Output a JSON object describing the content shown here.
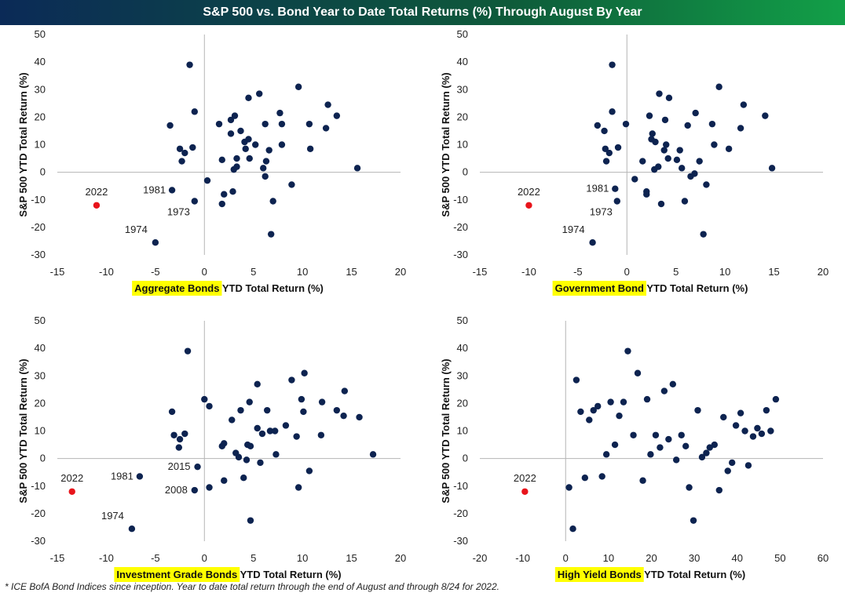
{
  "title": "S&P 500 vs. Bond Year to Date Total Returns (%) Through August By Year",
  "footnote": "* ICE BofA Bond Indices since inception. Year to date total return through the end of August and through 8/24 for 2022.",
  "colors": {
    "point": "#0d2350",
    "highlight": "#e8141b",
    "label_highlight": "#ffff00"
  },
  "chart_data": [
    {
      "type": "scatter",
      "xlabel_highlight": "Aggregate Bonds",
      "xlabel_rest": " YTD Total Return (%)",
      "ylabel": "S&P 500 YTD Total Return (%)",
      "xlim": [
        -15,
        20
      ],
      "ylim": [
        -30,
        50
      ],
      "xticks": [
        -15,
        -10,
        -5,
        0,
        5,
        10,
        15,
        20
      ],
      "yticks": [
        -30,
        -20,
        -10,
        0,
        10,
        20,
        30,
        40,
        50
      ],
      "points": [
        [
          -1.5,
          39
        ],
        [
          -1,
          22
        ],
        [
          -3.5,
          17
        ],
        [
          -2.5,
          8.5
        ],
        [
          -2,
          7
        ],
        [
          -1.2,
          9
        ],
        [
          -2.3,
          4
        ],
        [
          -3.3,
          -6.5
        ],
        [
          -1,
          -10.5
        ],
        [
          -5,
          -25.5
        ],
        [
          0.3,
          -3
        ],
        [
          1.5,
          17.5
        ],
        [
          1.8,
          4.5
        ],
        [
          2,
          -8
        ],
        [
          1.8,
          -11.5
        ],
        [
          2.7,
          19
        ],
        [
          2.7,
          14
        ],
        [
          3.1,
          20.5
        ],
        [
          3,
          1
        ],
        [
          3.3,
          2
        ],
        [
          3.3,
          5
        ],
        [
          2.9,
          -7
        ],
        [
          3.7,
          15
        ],
        [
          4.1,
          11
        ],
        [
          4.2,
          8.5
        ],
        [
          4.5,
          12
        ],
        [
          4.5,
          27
        ],
        [
          4.6,
          5
        ],
        [
          5.2,
          10
        ],
        [
          5.6,
          28.5
        ],
        [
          6,
          1.5
        ],
        [
          6.2,
          17.5
        ],
        [
          6.2,
          -1.5
        ],
        [
          6.3,
          4
        ],
        [
          6.6,
          8
        ],
        [
          6.8,
          -22.5
        ],
        [
          7,
          -10.5
        ],
        [
          7.7,
          21.5
        ],
        [
          7.9,
          17.5
        ],
        [
          7.9,
          10
        ],
        [
          8.9,
          -4.5
        ],
        [
          9.6,
          31
        ],
        [
          10.7,
          17.5
        ],
        [
          10.8,
          8.5
        ],
        [
          12.4,
          16
        ],
        [
          12.6,
          24.5
        ],
        [
          13.5,
          20.5
        ],
        [
          15.6,
          1.5
        ]
      ],
      "highlight": {
        "x": -11,
        "y": -12,
        "label": "2022"
      },
      "annotations": [
        {
          "label": "1981",
          "x": -3.3,
          "y": -6.5
        },
        {
          "label": "1973",
          "x": -1,
          "y": -10.5
        },
        {
          "label": "1974",
          "x": -5,
          "y": -25.5
        }
      ]
    },
    {
      "type": "scatter",
      "xlabel_highlight": "Government Bond",
      "xlabel_rest": " YTD Total Return (%)",
      "ylabel": "S&P 500 YTD Total Return (%)",
      "xlim": [
        -15,
        20
      ],
      "ylim": [
        -30,
        50
      ],
      "xticks": [
        -15,
        -10,
        -5,
        0,
        5,
        10,
        15,
        20
      ],
      "yticks": [
        -30,
        -20,
        -10,
        0,
        10,
        20,
        30,
        40,
        50
      ],
      "points": [
        [
          -1.5,
          39
        ],
        [
          -1.5,
          22
        ],
        [
          -3,
          17
        ],
        [
          -2.3,
          15
        ],
        [
          -2.2,
          8.5
        ],
        [
          -1.8,
          7
        ],
        [
          -0.9,
          9
        ],
        [
          -2.1,
          4
        ],
        [
          -1.2,
          -6
        ],
        [
          -1,
          -10.5
        ],
        [
          -3.5,
          -25.5
        ],
        [
          -0.1,
          17.5
        ],
        [
          0.8,
          -2.5
        ],
        [
          1.6,
          4
        ],
        [
          2,
          -7
        ],
        [
          2,
          -8
        ],
        [
          2.3,
          20.5
        ],
        [
          2.5,
          12
        ],
        [
          2.6,
          14
        ],
        [
          2.9,
          11
        ],
        [
          2.8,
          1
        ],
        [
          3.2,
          2
        ],
        [
          3.3,
          28.5
        ],
        [
          3.5,
          -11.5
        ],
        [
          3.8,
          8
        ],
        [
          3.9,
          19
        ],
        [
          4,
          10
        ],
        [
          4.3,
          27
        ],
        [
          4.2,
          5
        ],
        [
          5.1,
          4.5
        ],
        [
          5.4,
          8
        ],
        [
          5.6,
          1.5
        ],
        [
          5.9,
          -10.5
        ],
        [
          6.2,
          17
        ],
        [
          6.5,
          -1.5
        ],
        [
          6.9,
          -0.5
        ],
        [
          7,
          21.5
        ],
        [
          7.4,
          4
        ],
        [
          7.8,
          -22.5
        ],
        [
          8.1,
          -4.5
        ],
        [
          8.7,
          17.5
        ],
        [
          8.9,
          10
        ],
        [
          9.4,
          31
        ],
        [
          10.4,
          8.5
        ],
        [
          11.6,
          16
        ],
        [
          11.9,
          24.5
        ],
        [
          14.1,
          20.5
        ],
        [
          14.8,
          1.5
        ]
      ],
      "highlight": {
        "x": -10,
        "y": -12,
        "label": "2022"
      },
      "annotations": [
        {
          "label": "1981",
          "x": -1.2,
          "y": -6
        },
        {
          "label": "1973",
          "x": -1,
          "y": -10.5
        },
        {
          "label": "1974",
          "x": -3.5,
          "y": -25.5
        }
      ]
    },
    {
      "type": "scatter",
      "xlabel_highlight": "Investment Grade Bonds",
      "xlabel_rest": " YTD Total Return (%)",
      "ylabel": "S&P 500 YTD Total Return (%)",
      "xlim": [
        -15,
        20
      ],
      "ylim": [
        -30,
        50
      ],
      "xticks": [
        -15,
        -10,
        -5,
        0,
        5,
        10,
        15,
        20
      ],
      "yticks": [
        -30,
        -20,
        -10,
        0,
        10,
        20,
        30,
        40,
        50
      ],
      "points": [
        [
          -1.7,
          39
        ],
        [
          0,
          21.5
        ],
        [
          0.5,
          19
        ],
        [
          -3.3,
          17
        ],
        [
          -3.1,
          8.5
        ],
        [
          -2.5,
          7
        ],
        [
          -2,
          9
        ],
        [
          -2.6,
          4
        ],
        [
          -6.6,
          -6.5
        ],
        [
          -0.7,
          -3
        ],
        [
          -1,
          -11.5
        ],
        [
          -7.4,
          -25.5
        ],
        [
          0.5,
          -10.5
        ],
        [
          1.8,
          4.5
        ],
        [
          2,
          5.5
        ],
        [
          2,
          -8
        ],
        [
          2.8,
          14
        ],
        [
          3.2,
          2
        ],
        [
          3.5,
          0.5
        ],
        [
          3.7,
          17.5
        ],
        [
          4,
          -7
        ],
        [
          4.3,
          -0.5
        ],
        [
          4.4,
          5
        ],
        [
          4.6,
          20.5
        ],
        [
          4.7,
          4.5
        ],
        [
          4.7,
          -22.5
        ],
        [
          5.4,
          11
        ],
        [
          5.4,
          27
        ],
        [
          5.7,
          -1.5
        ],
        [
          5.9,
          9
        ],
        [
          6.4,
          17.5
        ],
        [
          6.7,
          10
        ],
        [
          7.2,
          10
        ],
        [
          7.3,
          1.5
        ],
        [
          8.3,
          12
        ],
        [
          8.9,
          28.5
        ],
        [
          9.4,
          8
        ],
        [
          9.6,
          -10.5
        ],
        [
          9.9,
          21.5
        ],
        [
          10.1,
          17
        ],
        [
          10.2,
          31
        ],
        [
          10.7,
          -4.5
        ],
        [
          11.9,
          8.5
        ],
        [
          12,
          20.5
        ],
        [
          13.5,
          17.5
        ],
        [
          14.2,
          15.5
        ],
        [
          14.3,
          24.5
        ],
        [
          15.8,
          15
        ],
        [
          17.2,
          1.5
        ]
      ],
      "highlight": {
        "x": -13.5,
        "y": -12,
        "label": "2022"
      },
      "annotations": [
        {
          "label": "1981",
          "x": -6.6,
          "y": -6.5
        },
        {
          "label": "2015",
          "x": -0.7,
          "y": -3
        },
        {
          "label": "2008",
          "x": -1,
          "y": -11.5
        },
        {
          "label": "1974",
          "x": -7.4,
          "y": -25.5
        }
      ]
    },
    {
      "type": "scatter",
      "xlabel_highlight": "High Yield Bonds",
      "xlabel_rest": " YTD Total Return (%)",
      "ylabel": "S&P 500 YTD Total Return (%)",
      "xlim": [
        -20,
        60
      ],
      "ylim": [
        -30,
        50
      ],
      "xticks": [
        -20,
        -10,
        0,
        10,
        20,
        30,
        40,
        50,
        60
      ],
      "yticks": [
        -30,
        -20,
        -10,
        0,
        10,
        20,
        30,
        40,
        50
      ],
      "points": [
        [
          0.8,
          -10.5
        ],
        [
          1.7,
          -25.5
        ],
        [
          2.5,
          28.5
        ],
        [
          3.5,
          17
        ],
        [
          4.5,
          -7
        ],
        [
          5.5,
          14
        ],
        [
          6.5,
          17.5
        ],
        [
          7.5,
          19
        ],
        [
          8.5,
          -6.5
        ],
        [
          9.5,
          1.5
        ],
        [
          10.5,
          20.5
        ],
        [
          11.5,
          5
        ],
        [
          12.5,
          15.5
        ],
        [
          13.5,
          20.5
        ],
        [
          14.5,
          39
        ],
        [
          15.8,
          8.5
        ],
        [
          16.8,
          31
        ],
        [
          18,
          -8
        ],
        [
          19,
          21.5
        ],
        [
          19.8,
          1.5
        ],
        [
          21,
          8.5
        ],
        [
          22,
          4
        ],
        [
          23,
          24.5
        ],
        [
          24,
          7
        ],
        [
          25,
          27
        ],
        [
          25.8,
          -0.5
        ],
        [
          27,
          8.5
        ],
        [
          28,
          4.5
        ],
        [
          28.8,
          -10.5
        ],
        [
          29.8,
          -22.5
        ],
        [
          30.8,
          17.5
        ],
        [
          31.8,
          0.5
        ],
        [
          32.8,
          2
        ],
        [
          33.6,
          4
        ],
        [
          34.7,
          5
        ],
        [
          35.8,
          -11.5
        ],
        [
          36.8,
          15
        ],
        [
          37.8,
          -4.5
        ],
        [
          38.8,
          -1.5
        ],
        [
          39.7,
          12
        ],
        [
          40.8,
          16.5
        ],
        [
          41.8,
          10
        ],
        [
          42.6,
          -2.5
        ],
        [
          43.7,
          8
        ],
        [
          44.7,
          11
        ],
        [
          45.7,
          9
        ],
        [
          46.8,
          17.5
        ],
        [
          47.8,
          10
        ],
        [
          49,
          21.5
        ]
      ],
      "highlight": {
        "x": -9.5,
        "y": -12,
        "label": "2022"
      },
      "annotations": []
    }
  ]
}
